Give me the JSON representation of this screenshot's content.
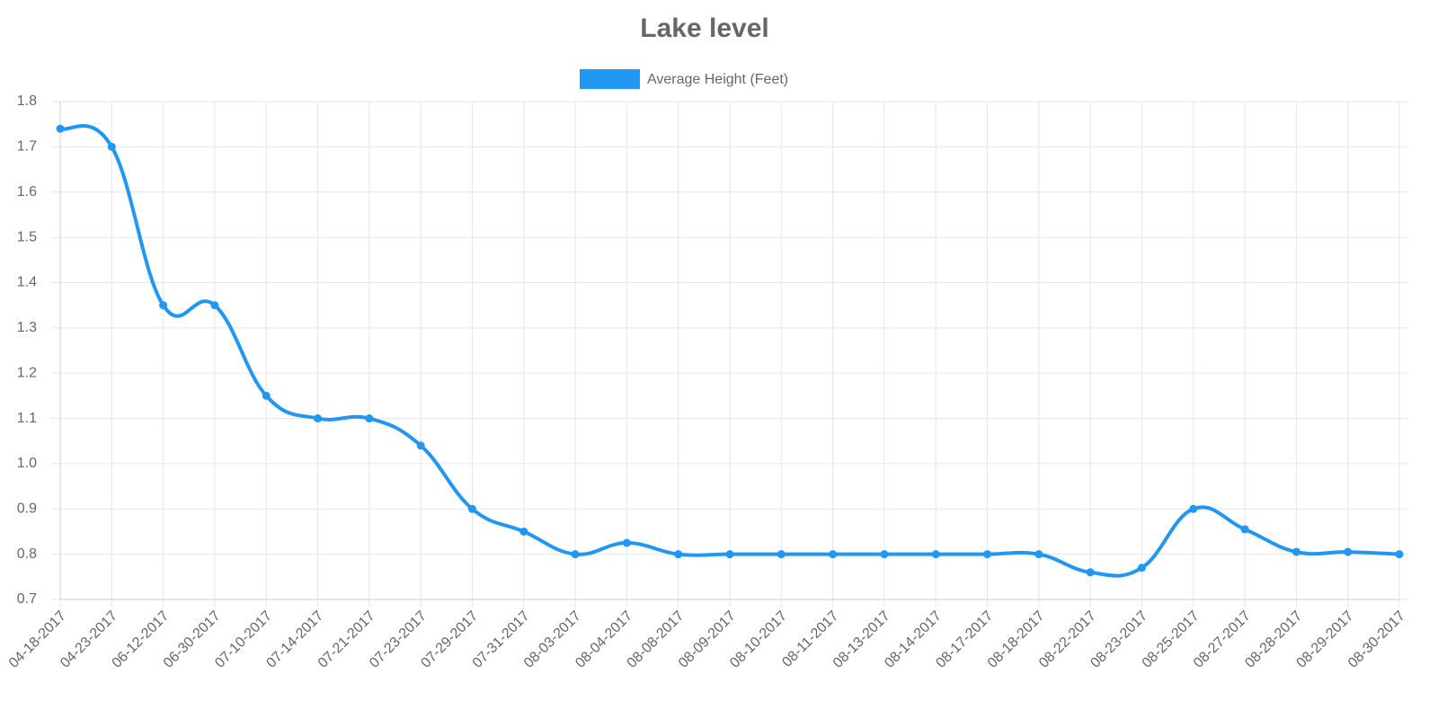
{
  "chart_data": {
    "type": "line",
    "title": "Lake level",
    "categories": [
      "04-18-2017",
      "04-23-2017",
      "06-12-2017",
      "06-30-2017",
      "07-10-2017",
      "07-14-2017",
      "07-21-2017",
      "07-23-2017",
      "07-29-2017",
      "07-31-2017",
      "08-03-2017",
      "08-04-2017",
      "08-08-2017",
      "08-09-2017",
      "08-10-2017",
      "08-11-2017",
      "08-13-2017",
      "08-14-2017",
      "08-17-2017",
      "08-18-2017",
      "08-22-2017",
      "08-23-2017",
      "08-25-2017",
      "08-27-2017",
      "08-28-2017",
      "08-29-2017",
      "08-30-2017"
    ],
    "series": [
      {
        "name": "Average Height (Feet)",
        "color": "#2196f3",
        "values": [
          1.74,
          1.7,
          1.35,
          1.35,
          1.15,
          1.1,
          1.1,
          1.04,
          0.9,
          0.85,
          0.8,
          0.825,
          0.8,
          0.8,
          0.8,
          0.8,
          0.8,
          0.8,
          0.8,
          0.8,
          0.76,
          0.77,
          0.9,
          0.855,
          0.805,
          0.805,
          0.8
        ]
      }
    ],
    "ylim": [
      0.7,
      1.8
    ],
    "yticks": [
      0.7,
      0.8,
      0.9,
      {
        "value": 1,
        "label": "1.0"
      },
      1.1,
      1.2,
      1.3,
      1.4,
      1.5,
      1.6,
      1.7,
      1.8
    ],
    "grid": true,
    "legend": "top"
  }
}
